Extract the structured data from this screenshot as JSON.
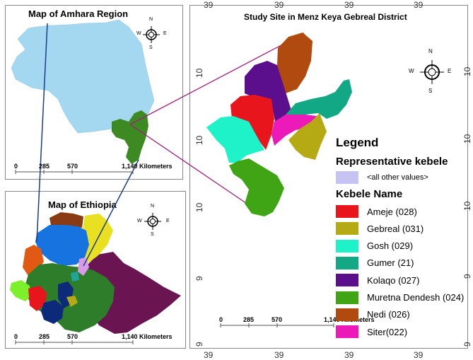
{
  "maps": {
    "amhara": {
      "title": "Map of Amhara Region",
      "scale": {
        "ticks": [
          "0",
          "285",
          "570",
          "1,140 Kilometers"
        ]
      }
    },
    "ethiopia": {
      "title": "Map of Ethiopia",
      "scale": {
        "ticks": [
          "0",
          "285",
          "570",
          "1,140 Kilometers"
        ]
      }
    },
    "study": {
      "title": "Study Site in Menz Keya Gebreal District",
      "scale": {
        "ticks": [
          "0",
          "285",
          "570",
          "1,140 Kilometers"
        ]
      },
      "top_ticks": [
        "39",
        "39",
        "39",
        "39"
      ],
      "bottom_ticks": [
        "39",
        "39",
        "39",
        "39"
      ],
      "left_ticks": [
        "10",
        "10",
        "10",
        "9",
        "9"
      ],
      "right_ticks": [
        "10",
        "10",
        "10",
        "9",
        "9"
      ]
    }
  },
  "compass": {
    "n": "N",
    "s": "S",
    "e": "E",
    "w": "W"
  },
  "legend": {
    "title": "Legend",
    "rep_title": "Representative kebele",
    "rep_item": {
      "label": "<all other values>",
      "color": "#c6c2f2"
    },
    "kebele_title": "Kebele Name",
    "items": [
      {
        "label": "Ameje  (028)",
        "color": "#e8151c"
      },
      {
        "label": "Gebreal (031)",
        "color": "#b5a914"
      },
      {
        "label": "Gosh  (029)",
        "color": "#1ef2c8"
      },
      {
        "label": "Gumer (21)",
        "color": "#12a886"
      },
      {
        "label": "Kolaqo (027)",
        "color": "#5b0f8c"
      },
      {
        "label": "Muretna Dendesh (024)",
        "color": "#3fa514"
      },
      {
        "label": "Nedi (026)",
        "color": "#b04a0f"
      },
      {
        "label": "Siter(022)",
        "color": "#ec1ab8"
      }
    ]
  },
  "colors": {
    "amhara_fill": "#a3d8f0",
    "highlight_district": "#3e8a22",
    "connector_blue": "#1a3d8a",
    "connector_purple": "#a0207e",
    "eth_purple": "#6b1452",
    "eth_green": "#2e7d2a",
    "eth_yellow": "#e8e021",
    "eth_blue": "#1673e0",
    "eth_orange": "#e05a14",
    "eth_brown": "#8a3b14"
  }
}
